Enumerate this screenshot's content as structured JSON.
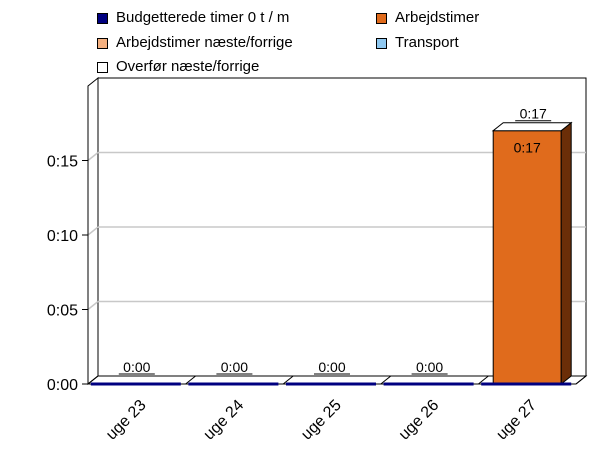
{
  "legend": {
    "items": [
      {
        "label": "Budgetterede timer 0 t  / m",
        "color": "#000080"
      },
      {
        "label": "Arbejdstimer",
        "color": "#e06b1c"
      },
      {
        "label": "Arbejdstimer næste/forrige",
        "color": "#f4b080"
      },
      {
        "label": "Transport",
        "color": "#8fc8f0"
      },
      {
        "label": "Overfør næste/forrige",
        "color": "#ffffff"
      }
    ]
  },
  "chart_data": {
    "type": "bar",
    "categories": [
      "uge 23",
      "uge 24",
      "uge 25",
      "uge 26",
      "uge 27"
    ],
    "series": [
      {
        "name": "Arbejdstimer",
        "values": [
          0,
          0,
          0,
          0,
          0.17
        ],
        "labels": [
          "0:00",
          "0:00",
          "0:00",
          "0:00",
          "0:17"
        ],
        "color": "#e06b1c",
        "side_color": "#6b2e08",
        "top_color": "#ffffff"
      },
      {
        "name": "Budgetterede timer 0 t  / m",
        "values": [
          0,
          0,
          0,
          0,
          0
        ],
        "color": "#000080"
      }
    ],
    "ylim": [
      0,
      0.2
    ],
    "yticks": [
      {
        "value": 0,
        "label": "0:00"
      },
      {
        "value": 0.05,
        "label": "0:05"
      },
      {
        "value": 0.1,
        "label": "0:10"
      },
      {
        "value": 0.15,
        "label": "0:15"
      }
    ],
    "grid": true,
    "legend_position": "top",
    "title": "",
    "xlabel": "",
    "ylabel": "",
    "extra_labels": [
      {
        "category": "uge 27",
        "text": "0:17"
      }
    ]
  }
}
